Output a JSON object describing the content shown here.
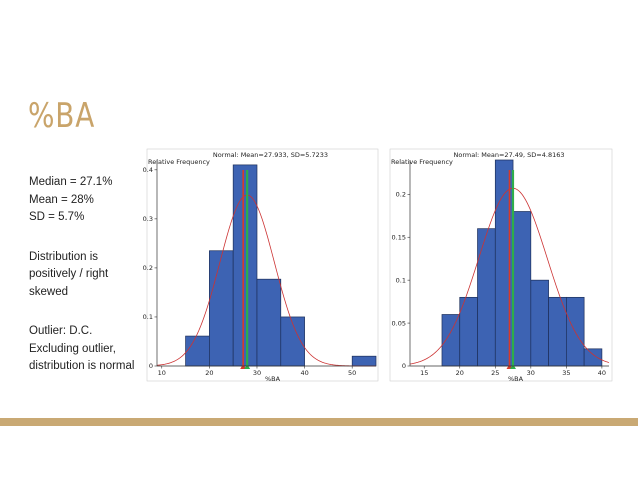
{
  "slide": {
    "title": "%BA",
    "notes": [
      "Median = 27.1%",
      "Mean = 28%",
      "SD = 5.7%",
      "Distribution is positively / right skewed",
      "Outlier: D.C.",
      "Excluding outlier, distribution is normal"
    ],
    "accent_color": "#c9a974"
  },
  "chart_data": [
    {
      "type": "bar",
      "title": "Normal: Mean=27.933, SD=5.7233",
      "ylabel": "Relative Frequency",
      "xlabel": "%BA",
      "bin_edges": [
        15,
        20,
        25,
        30,
        35,
        40,
        45,
        50,
        55
      ],
      "values": [
        0.061,
        0.235,
        0.41,
        0.177,
        0.1,
        0,
        0,
        0.02
      ],
      "xlim": [
        9,
        55
      ],
      "ylim": [
        0,
        0.42
      ],
      "xticks": [
        10,
        20,
        30,
        40,
        50
      ],
      "yticks": [
        0,
        0.1,
        0.2,
        0.3,
        0.4
      ],
      "ytick_labels": [
        "0",
        "0.1",
        "0.2",
        "0.3",
        "0.4"
      ],
      "normal": {
        "mean": 27.933,
        "sd": 5.7233
      },
      "lines": {
        "green": 27.933,
        "red": 27.1
      },
      "bar_color": "#3d63b3",
      "curve_color": "#cc3333"
    },
    {
      "type": "bar",
      "title": "Normal: Mean=27.49, SD=4.8163",
      "ylabel": "Relative Frequency",
      "xlabel": "%BA",
      "bin_edges": [
        17.5,
        20,
        22.5,
        25,
        27.5,
        30,
        32.5,
        35,
        37.5,
        40
      ],
      "values": [
        0.06,
        0.08,
        0.16,
        0.24,
        0.18,
        0.1,
        0.08,
        0.08,
        0.02
      ],
      "xlim": [
        13,
        41
      ],
      "ylim": [
        0,
        0.24
      ],
      "xticks": [
        15,
        20,
        25,
        30,
        35,
        40
      ],
      "yticks": [
        0,
        0.05,
        0.1,
        0.15,
        0.2
      ],
      "ytick_labels": [
        "0",
        "0.05",
        "0.1",
        "0.15",
        "0.2"
      ],
      "normal": {
        "mean": 27.49,
        "sd": 4.8163
      },
      "lines": {
        "green": 27.49,
        "red": 27.0
      },
      "bar_color": "#3d63b3",
      "curve_color": "#cc3333"
    }
  ]
}
